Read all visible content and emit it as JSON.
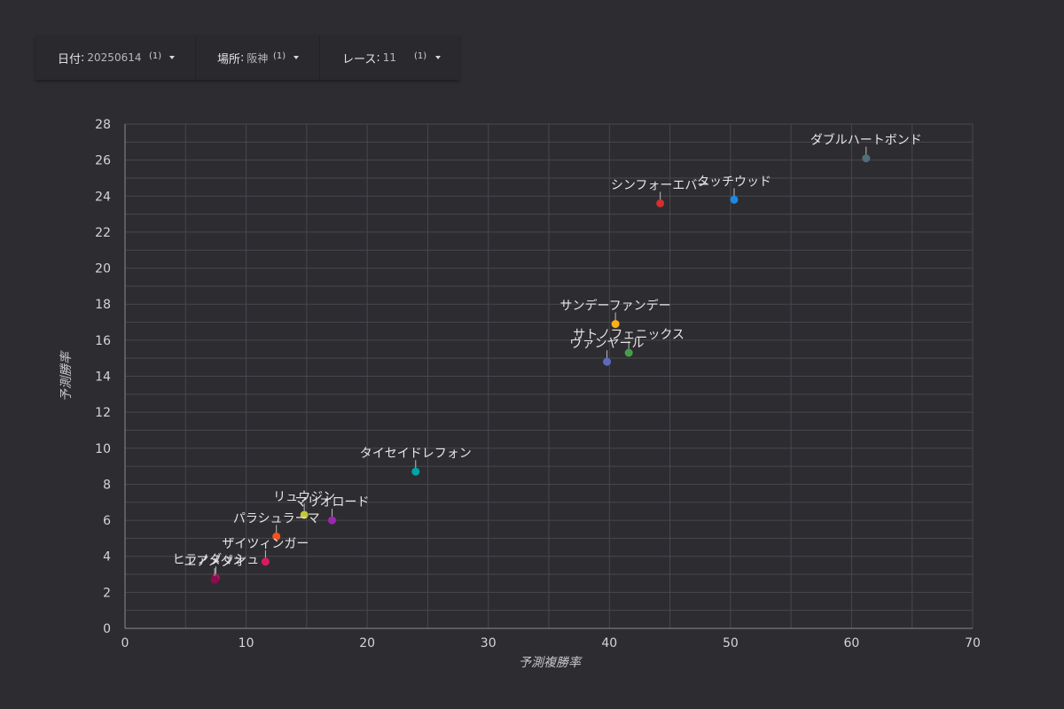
{
  "filters": [
    {
      "name": "日付",
      "value": "20250614",
      "count": "(1)"
    },
    {
      "name": "場所",
      "value": "阪神",
      "count": "(1)"
    },
    {
      "name": "レース",
      "value": "11",
      "count": "(1)"
    }
  ],
  "chart_data": {
    "type": "scatter",
    "xlabel": "予測複勝率",
    "ylabel": "予測勝率",
    "xlim": [
      0,
      70
    ],
    "ylim": [
      0,
      28
    ],
    "xticks": [
      0,
      10,
      20,
      30,
      40,
      50,
      60,
      70
    ],
    "yticks": [
      0,
      2,
      4,
      6,
      8,
      10,
      12,
      14,
      16,
      18,
      20,
      22,
      24,
      26,
      28
    ],
    "grid": true,
    "points": [
      {
        "label": "ダブルハートボンド",
        "x": 61.2,
        "y": 26.1,
        "color": "#4e6e7a"
      },
      {
        "label": "シンフォーエバー",
        "x": 44.2,
        "y": 23.6,
        "color": "#d32f2f"
      },
      {
        "label": "タッチウッド",
        "x": 50.3,
        "y": 23.8,
        "color": "#1e88e5"
      },
      {
        "label": "サンデーファンデー",
        "x": 40.5,
        "y": 16.9,
        "color": "#f9b115"
      },
      {
        "label": "サトノフェニックス",
        "x": 41.6,
        "y": 15.3,
        "color": "#43a047"
      },
      {
        "label": "ヴァンヤール",
        "x": 39.8,
        "y": 14.8,
        "color": "#5c6bc0"
      },
      {
        "label": "タイセイドレフォン",
        "x": 24.0,
        "y": 8.7,
        "color": "#00a5a8"
      },
      {
        "label": "リュウジン",
        "x": 14.8,
        "y": 6.3,
        "color": "#c0ca33"
      },
      {
        "label": "マリオロード",
        "x": 17.1,
        "y": 6.0,
        "color": "#9c27b0"
      },
      {
        "label": "パラシュラーマ",
        "x": 12.5,
        "y": 5.1,
        "color": "#f4511e"
      },
      {
        "label": "ザイツィンガー",
        "x": 11.6,
        "y": 3.7,
        "color": "#d81b60"
      },
      {
        "label": "ヒラノダッシュ",
        "x": 7.5,
        "y": 2.8,
        "color": "#ad1457"
      },
      {
        "label": "エアメダオ",
        "x": 7.4,
        "y": 2.7,
        "color": "#880e4f"
      }
    ]
  }
}
